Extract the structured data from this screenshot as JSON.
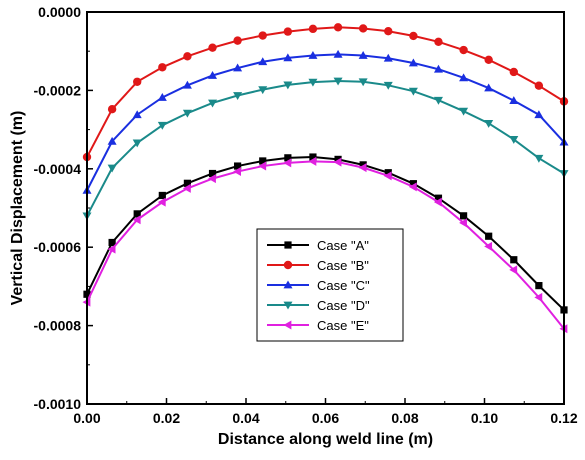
{
  "chart_data": {
    "type": "line",
    "title": "",
    "xlabel": "Distance along weld line (m)",
    "ylabel": "Vertical Displacement (m)",
    "xlim": [
      0.0,
      0.12
    ],
    "ylim": [
      -0.001,
      0.0
    ],
    "x_ticks": [
      0.0,
      0.02,
      0.04,
      0.06,
      0.08,
      0.1,
      0.12
    ],
    "x_tick_labels": [
      "0.00",
      "0.02",
      "0.04",
      "0.06",
      "0.08",
      "0.10",
      "0.12"
    ],
    "y_ticks": [
      0.0,
      -0.0002,
      -0.0004,
      -0.0006,
      -0.0008,
      -0.001
    ],
    "y_tick_labels": [
      "0.0000",
      "-0.0002",
      "-0.0004",
      "-0.0006",
      "-0.0008",
      "-0.0010"
    ],
    "grid": false,
    "legend_position": "bottom-center",
    "x": [
      0.0,
      0.00632,
      0.01263,
      0.01895,
      0.02526,
      0.03158,
      0.03789,
      0.04421,
      0.05053,
      0.05684,
      0.06316,
      0.06947,
      0.07579,
      0.08211,
      0.08842,
      0.09474,
      0.10105,
      0.10737,
      0.11368,
      0.12
    ],
    "series": [
      {
        "name": "Case \"A\"",
        "color": "#000000",
        "marker": "square",
        "values": [
          -0.00072,
          -0.000588,
          -0.000515,
          -0.000468,
          -0.000437,
          -0.000412,
          -0.000393,
          -0.00038,
          -0.000372,
          -0.00037,
          -0.000376,
          -0.00039,
          -0.00041,
          -0.000438,
          -0.000475,
          -0.00052,
          -0.000572,
          -0.000632,
          -0.000698,
          -0.00076
        ]
      },
      {
        "name": "Case \"B\"",
        "color": "#e01818",
        "marker": "circle",
        "values": [
          -0.00037,
          -0.000248,
          -0.000178,
          -0.000141,
          -0.000113,
          -9.1e-05,
          -7.3e-05,
          -6e-05,
          -5e-05,
          -4.3e-05,
          -3.9e-05,
          -4.2e-05,
          -4.9e-05,
          -6.1e-05,
          -7.6e-05,
          -9.7e-05,
          -0.000122,
          -0.000153,
          -0.000188,
          -0.000228
        ]
      },
      {
        "name": "Case \"C\"",
        "color": "#1a2fe0",
        "marker": "triangle-up",
        "values": [
          -0.000455,
          -0.00033,
          -0.000262,
          -0.000218,
          -0.000187,
          -0.000162,
          -0.000143,
          -0.000127,
          -0.000117,
          -0.000111,
          -0.000108,
          -0.000111,
          -0.000118,
          -0.00013,
          -0.000146,
          -0.000168,
          -0.000194,
          -0.000226,
          -0.000262,
          -0.000332
        ]
      },
      {
        "name": "Case \"D\"",
        "color": "#1a8a8a",
        "marker": "triangle-down",
        "values": [
          -0.00052,
          -0.000398,
          -0.000334,
          -0.000289,
          -0.000258,
          -0.000232,
          -0.000213,
          -0.000198,
          -0.000186,
          -0.000179,
          -0.000176,
          -0.000178,
          -0.000187,
          -0.000202,
          -0.000225,
          -0.000253,
          -0.000284,
          -0.000325,
          -0.000373,
          -0.000412
        ]
      },
      {
        "name": "Case \"E\"",
        "color": "#e020e0",
        "marker": "triangle-left",
        "values": [
          -0.00074,
          -0.000605,
          -0.00053,
          -0.000485,
          -0.00045,
          -0.000425,
          -0.000407,
          -0.000393,
          -0.000385,
          -0.000381,
          -0.000383,
          -0.000397,
          -0.000418,
          -0.000446,
          -0.000485,
          -0.000538,
          -0.000598,
          -0.000658,
          -0.000728,
          -0.000808
        ]
      }
    ]
  }
}
